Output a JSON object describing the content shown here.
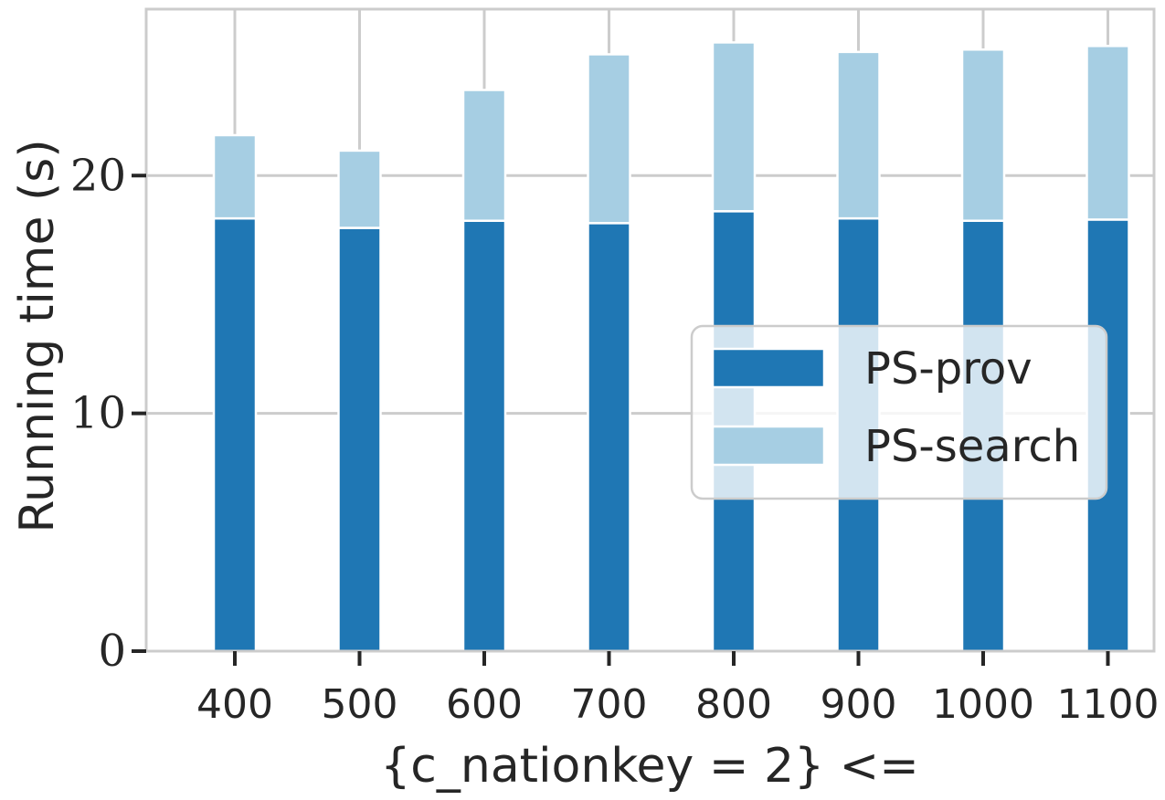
{
  "chart_data": {
    "type": "bar",
    "stacked": true,
    "categories": [
      "400",
      "500",
      "600",
      "700",
      "800",
      "900",
      "1000",
      "1100"
    ],
    "series": [
      {
        "name": "PS-prov",
        "color": "#1f77b4",
        "values": [
          18.2,
          17.8,
          18.1,
          18.0,
          18.5,
          18.2,
          18.1,
          18.15
        ]
      },
      {
        "name": "PS-search",
        "color": "#a6cee3",
        "values": [
          3.5,
          3.25,
          5.5,
          7.1,
          7.1,
          7.0,
          7.2,
          7.3
        ]
      }
    ],
    "title": "",
    "xlabel": "{c_nationkey = 2} <=",
    "ylabel": "Running time (s)",
    "ylim": [
      0,
      27.0
    ],
    "yticks": [
      0,
      10,
      20
    ],
    "grid": true,
    "legend_position": "center-right"
  }
}
